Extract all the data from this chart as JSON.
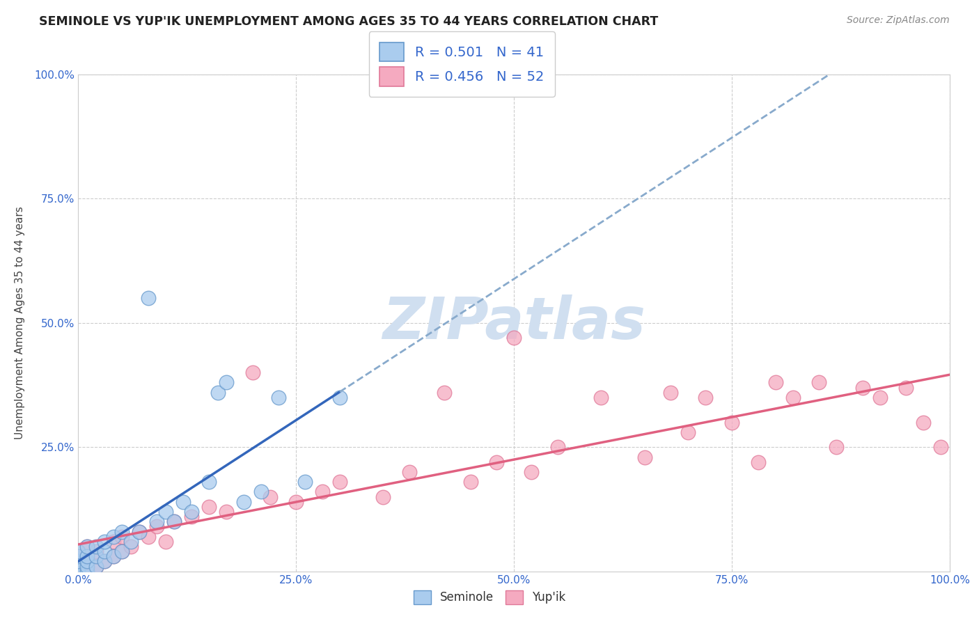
{
  "title": "SEMINOLE VS YUP'IK UNEMPLOYMENT AMONG AGES 35 TO 44 YEARS CORRELATION CHART",
  "source": "Source: ZipAtlas.com",
  "ylabel": "Unemployment Among Ages 35 to 44 years",
  "xlim": [
    0,
    1
  ],
  "ylim": [
    0,
    1
  ],
  "seminole_R": 0.501,
  "seminole_N": 41,
  "yupik_R": 0.456,
  "yupik_N": 52,
  "seminole_color": "#aaccee",
  "yupik_color": "#f5aac0",
  "seminole_edge_color": "#6699cc",
  "yupik_edge_color": "#e07898",
  "seminole_line_color": "#3366bb",
  "yupik_line_color": "#e06080",
  "trend_dashed_color": "#88aacc",
  "background_color": "#ffffff",
  "watermark_color": "#d0dff0",
  "grid_color": "#cccccc",
  "tick_color": "#3366cc",
  "title_color": "#222222",
  "source_color": "#888888",
  "ylabel_color": "#444444",
  "legend_text_color": "#3366cc",
  "legend_edge_color": "#cccccc",
  "seminole_x": [
    0.0,
    0.0,
    0.0,
    0.0,
    0.0,
    0.0,
    0.0,
    0.0,
    0.0,
    0.0,
    0.01,
    0.01,
    0.01,
    0.01,
    0.01,
    0.02,
    0.02,
    0.02,
    0.03,
    0.03,
    0.03,
    0.04,
    0.04,
    0.05,
    0.05,
    0.06,
    0.07,
    0.08,
    0.09,
    0.1,
    0.11,
    0.12,
    0.13,
    0.15,
    0.16,
    0.17,
    0.19,
    0.21,
    0.23,
    0.26,
    0.3
  ],
  "seminole_y": [
    0.0,
    0.0,
    0.0,
    0.0,
    0.0,
    0.01,
    0.01,
    0.02,
    0.03,
    0.04,
    0.0,
    0.01,
    0.02,
    0.03,
    0.05,
    0.01,
    0.03,
    0.05,
    0.02,
    0.04,
    0.06,
    0.03,
    0.07,
    0.04,
    0.08,
    0.06,
    0.08,
    0.55,
    0.1,
    0.12,
    0.1,
    0.14,
    0.12,
    0.18,
    0.36,
    0.38,
    0.14,
    0.16,
    0.35,
    0.18,
    0.35
  ],
  "yupik_x": [
    0.0,
    0.0,
    0.0,
    0.0,
    0.01,
    0.01,
    0.01,
    0.02,
    0.02,
    0.03,
    0.04,
    0.04,
    0.05,
    0.05,
    0.06,
    0.07,
    0.08,
    0.09,
    0.1,
    0.11,
    0.13,
    0.15,
    0.17,
    0.2,
    0.22,
    0.25,
    0.28,
    0.3,
    0.35,
    0.38,
    0.42,
    0.45,
    0.48,
    0.5,
    0.52,
    0.55,
    0.6,
    0.65,
    0.68,
    0.7,
    0.72,
    0.75,
    0.78,
    0.8,
    0.82,
    0.85,
    0.87,
    0.9,
    0.92,
    0.95,
    0.97,
    0.99
  ],
  "yupik_y": [
    0.0,
    0.0,
    0.01,
    0.03,
    0.0,
    0.02,
    0.05,
    0.01,
    0.04,
    0.02,
    0.03,
    0.06,
    0.04,
    0.07,
    0.05,
    0.08,
    0.07,
    0.09,
    0.06,
    0.1,
    0.11,
    0.13,
    0.12,
    0.4,
    0.15,
    0.14,
    0.16,
    0.18,
    0.15,
    0.2,
    0.36,
    0.18,
    0.22,
    0.47,
    0.2,
    0.25,
    0.35,
    0.23,
    0.36,
    0.28,
    0.35,
    0.3,
    0.22,
    0.38,
    0.35,
    0.38,
    0.25,
    0.37,
    0.35,
    0.37,
    0.3,
    0.25
  ]
}
